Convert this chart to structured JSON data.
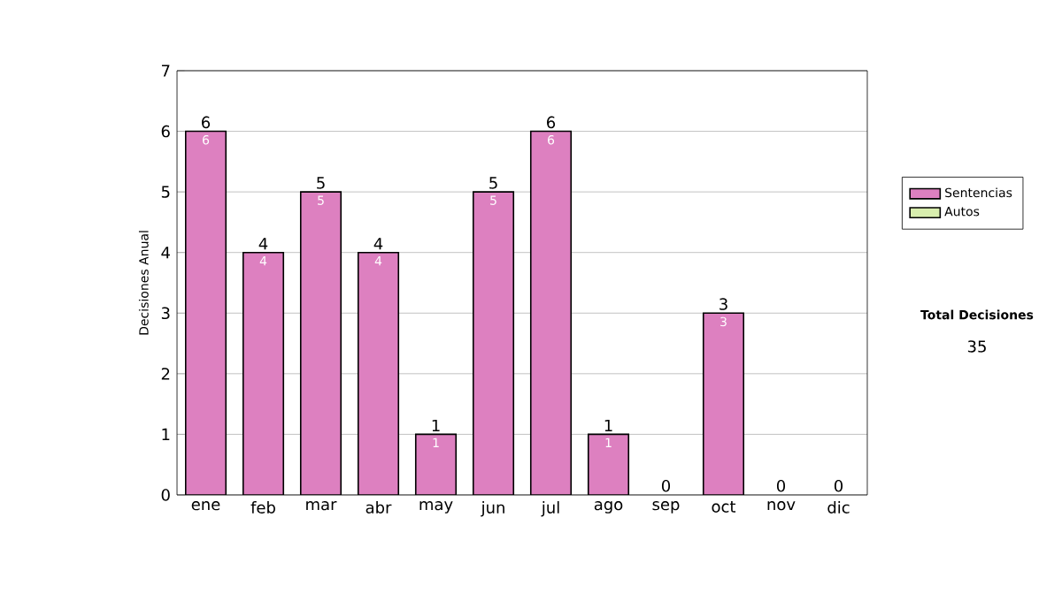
{
  "chart_data": {
    "type": "bar",
    "stacked": true,
    "ylabel": "Decisiones Anual",
    "categories": [
      "ene",
      "feb",
      "mar",
      "abr",
      "may",
      "jun",
      "jul",
      "ago",
      "sep",
      "oct",
      "nov",
      "dic"
    ],
    "series": [
      {
        "name": "Sentencias",
        "color": "#dd80c0",
        "values": [
          6,
          4,
          5,
          4,
          1,
          5,
          6,
          1,
          0,
          3,
          0,
          0
        ],
        "value_labels": [
          "6",
          "4",
          "5",
          "4",
          "1",
          "5",
          "6",
          "1",
          null,
          "3",
          null,
          null
        ]
      },
      {
        "name": "Autos",
        "color": "#d8eeae",
        "values": [
          0,
          0,
          0,
          0,
          0,
          0,
          0,
          0,
          0,
          0,
          0,
          0
        ]
      }
    ],
    "totals": [
      "6",
      "4",
      "5",
      "4",
      "1",
      "5",
      "6",
      "1",
      "0",
      "3",
      "0",
      "0"
    ],
    "ylim": [
      0,
      7
    ],
    "yticks": [
      0,
      1,
      2,
      3,
      4,
      5,
      6,
      7
    ],
    "grid": "y",
    "legend": "right",
    "annotations": [
      "Total Decisiones",
      "35"
    ]
  }
}
